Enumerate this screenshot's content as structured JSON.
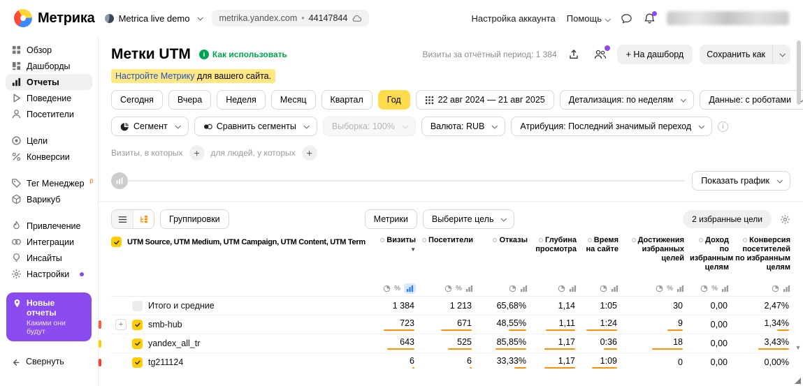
{
  "topbar": {
    "logo_text": "Метрика",
    "counter_name": "Metrica live demo",
    "counter_domain": "metrika.yandex.com",
    "counter_id": "44147844",
    "account_settings_label": "Настройка аккаунта",
    "help_label": "Помощь"
  },
  "sidebar": {
    "groups": [
      [
        {
          "icon": "grid-icon",
          "label": "Обзор"
        },
        {
          "icon": "dashboard-icon",
          "label": "Дашборды"
        },
        {
          "icon": "reports-icon",
          "label": "Отчеты",
          "active": true
        },
        {
          "icon": "play-icon",
          "label": "Поведение"
        },
        {
          "icon": "person-icon",
          "label": "Посетители"
        }
      ],
      [
        {
          "icon": "target-icon",
          "label": "Цели"
        },
        {
          "icon": "percent-icon",
          "label": "Конверсии"
        }
      ],
      [
        {
          "icon": "tag-icon",
          "label": "Тег Менеджер",
          "sup": "β"
        },
        {
          "icon": "cube-icon",
          "label": "Варикуб"
        }
      ],
      [
        {
          "icon": "flame-icon",
          "label": "Привлечение"
        },
        {
          "icon": "integrations-icon",
          "label": "Интеграции"
        },
        {
          "icon": "bulb-icon",
          "label": "Инсайты"
        },
        {
          "icon": "gear-icon",
          "label": "Настройки",
          "dot": true
        }
      ]
    ],
    "promo_title": "Новые отчеты",
    "promo_subtitle": "Какими они будут",
    "collapse_label": "Свернуть"
  },
  "report": {
    "title": "Метки UTM",
    "how_to_use_label": "Как использовать",
    "visits_period_label": "Визиты за отчётный период: 1 384",
    "add_to_dashboard_label": "+ На дашборд",
    "save_as_label": "Сохранить как",
    "notice_link": "Настройте Метрику",
    "notice_rest": " для вашего сайта."
  },
  "period": {
    "presets": [
      "Сегодня",
      "Вчера",
      "Неделя",
      "Месяц",
      "Квартал",
      "Год"
    ],
    "active_preset": "Год",
    "date_range": "22 авг 2024 — 21 авг 2025",
    "detalization_label": "Детализация: по неделям",
    "data_mode_label": "Данные: с роботами"
  },
  "segments": {
    "segment_label": "Сегмент",
    "compare_label": "Сравнить сегменты",
    "sampling_label": "Выборка: 100%",
    "currency_label": "Валюта: RUB",
    "attribution_label": "Атрибуция: Последний значимый переход"
  },
  "filters": {
    "visits_label": "Визиты, в которых",
    "people_label": "для людей, у которых"
  },
  "chart": {
    "show_chart_label": "Показать график"
  },
  "table_controls": {
    "groupings_label": "Группировки",
    "metrics_label": "Метрики",
    "choose_goal_label": "Выберите цель",
    "favorite_goals_label": "2 избранные цели"
  },
  "table": {
    "dimension_header": "UTM Source, UTM Medium, UTM Campaign, UTM Content, UTM Term",
    "columns": [
      {
        "label": "Визиты",
        "sorted": true,
        "icons": [
          "pie",
          "percent",
          "bars"
        ],
        "active_icon": "bars"
      },
      {
        "label": "Посетители",
        "icons": [
          "pie",
          "percent",
          "bars"
        ]
      },
      {
        "label": "Отказы",
        "icons": [
          "pie",
          "bars"
        ]
      },
      {
        "label": "Глубина просмотра",
        "icons": [
          "pie",
          "bars"
        ]
      },
      {
        "label": "Время на сайте",
        "icons": [
          "pie",
          "bars"
        ]
      },
      {
        "label": "Достижения избранных целей",
        "icons": [
          "pie",
          "percent",
          "bars"
        ]
      },
      {
        "label": "Доход по избранным целям",
        "icons": [
          "pie",
          "percent",
          "bars"
        ]
      },
      {
        "label": "Конверсия посетителей по избранным целям",
        "icons": [
          "pie",
          "bars"
        ]
      }
    ],
    "totals": {
      "label": "Итого и средние",
      "values": [
        "1 384",
        "1 213",
        "65,68%",
        "1,14",
        "1:05",
        "30",
        "0,00",
        "2,47%"
      ]
    },
    "rows": [
      {
        "label": "smb-hub",
        "expandable": true,
        "checked": true,
        "stripe_color": "#ff5c38",
        "cells": [
          {
            "v": "723",
            "bar": 100
          },
          {
            "v": "671",
            "bar": 100
          },
          {
            "v": "48,55%",
            "bar": 57
          },
          {
            "v": "1,11",
            "bar": 95
          },
          {
            "v": "1:24",
            "bar": 100
          },
          {
            "v": "9",
            "bar": 50
          },
          {
            "v": "0,00",
            "bar": 0
          },
          {
            "v": "1,34%",
            "bar": 39
          }
        ]
      },
      {
        "label": "yandex_all_tr",
        "checked": true,
        "stripe_color": "#ffcc00",
        "cells": [
          {
            "v": "643",
            "bar": 89
          },
          {
            "v": "525",
            "bar": 78
          },
          {
            "v": "85,85%",
            "bar": 100
          },
          {
            "v": "1,17",
            "bar": 100
          },
          {
            "v": "0:36",
            "bar": 43
          },
          {
            "v": "18",
            "bar": 100
          },
          {
            "v": "0,00",
            "bar": 0
          },
          {
            "v": "3,43%",
            "bar": 100
          }
        ]
      },
      {
        "label": "tg211124",
        "checked": true,
        "stripe_color": "#ff3b30",
        "cells": [
          {
            "v": "6",
            "bar": 3
          },
          {
            "v": "6",
            "bar": 3
          },
          {
            "v": "33,33%",
            "bar": 39
          },
          {
            "v": "1,17",
            "bar": 100
          },
          {
            "v": "1:09",
            "bar": 82
          },
          {
            "v": "0",
            "bar": 0
          },
          {
            "v": "0,00",
            "bar": 0
          },
          {
            "v": "0,00%",
            "bar": 0
          }
        ]
      }
    ]
  },
  "colors": {
    "accent_yellow": "#ffdb4d",
    "checkbox_yellow": "#ffcc00",
    "bar_orange": "#ff9000",
    "promo_purple": "#8a4bf0",
    "link_green": "#00a350",
    "link_blue": "#1f52c4"
  }
}
